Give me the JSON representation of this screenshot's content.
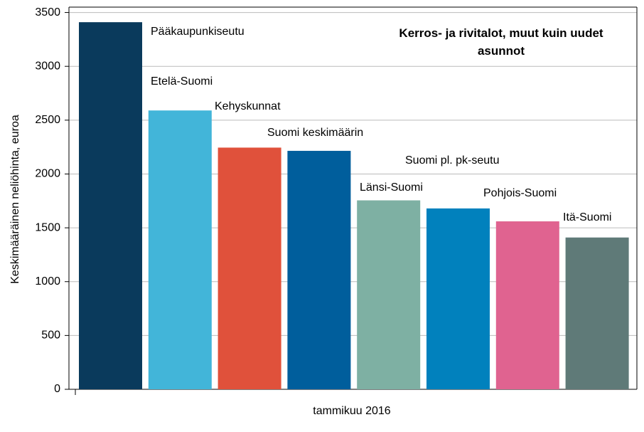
{
  "chart_data": {
    "type": "bar",
    "title": "Kerros- ja rivitalot, muut kuin uudet asunnot",
    "y_label": "Keskimääräinen neliöhinta, euroa",
    "categories": [
      "tammikuu 2016"
    ],
    "series": [
      {
        "name": "Pääkaupunkiseutu",
        "color": "#0a3a5c",
        "values": [
          3410
        ]
      },
      {
        "name": "Etelä-Suomi",
        "color": "#42b5d9",
        "values": [
          2590
        ]
      },
      {
        "name": "Kehyskunnat",
        "color": "#e0513b",
        "values": [
          2245
        ]
      },
      {
        "name": "Suomi keskimäärin",
        "color": "#005e9c",
        "values": [
          2215
        ]
      },
      {
        "name": "Suomi pl. pk-seutu",
        "color": "#0181bd",
        "values": [
          1680
        ]
      },
      {
        "name": "Länsi-Suomi",
        "color": "#7eb0a3",
        "values": [
          1755
        ]
      },
      {
        "name": "Pohjois-Suomi",
        "color": "#e06390",
        "values": [
          1560
        ]
      },
      {
        "name": "Itä-Suomi",
        "color": "#5f7a78",
        "values": [
          1410
        ]
      }
    ],
    "ylim": [
      0,
      3550
    ],
    "yticks": [
      0,
      500,
      1000,
      1500,
      2000,
      2500,
      3000,
      3500
    ],
    "grid": true
  }
}
